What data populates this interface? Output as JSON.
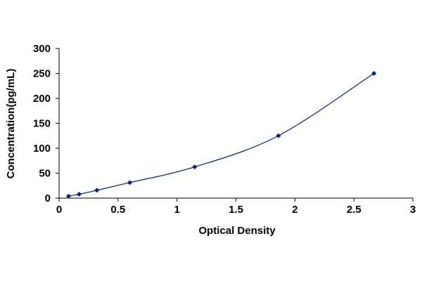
{
  "chart_data": {
    "type": "scatter",
    "title": "",
    "xlabel": "Optical Density",
    "ylabel": "Concentration(pg/mL)",
    "xlim": [
      0,
      3
    ],
    "ylim": [
      0,
      300
    ],
    "xticks": [
      "0",
      "0.5",
      "1",
      "1.5",
      "2",
      "2.5",
      "3"
    ],
    "yticks": [
      "0",
      "50",
      "100",
      "150",
      "200",
      "250",
      "300"
    ],
    "grid": false,
    "legend": "none",
    "marker": "diamond",
    "trendline": "smooth curve through points",
    "series": [
      {
        "x": [
          0.08,
          0.17,
          0.32,
          0.6,
          1.15,
          1.86,
          2.67
        ],
        "y": [
          3.9,
          7.8,
          15.6,
          31.2,
          62.5,
          125,
          250
        ],
        "color": "#0b1f7a"
      }
    ]
  }
}
